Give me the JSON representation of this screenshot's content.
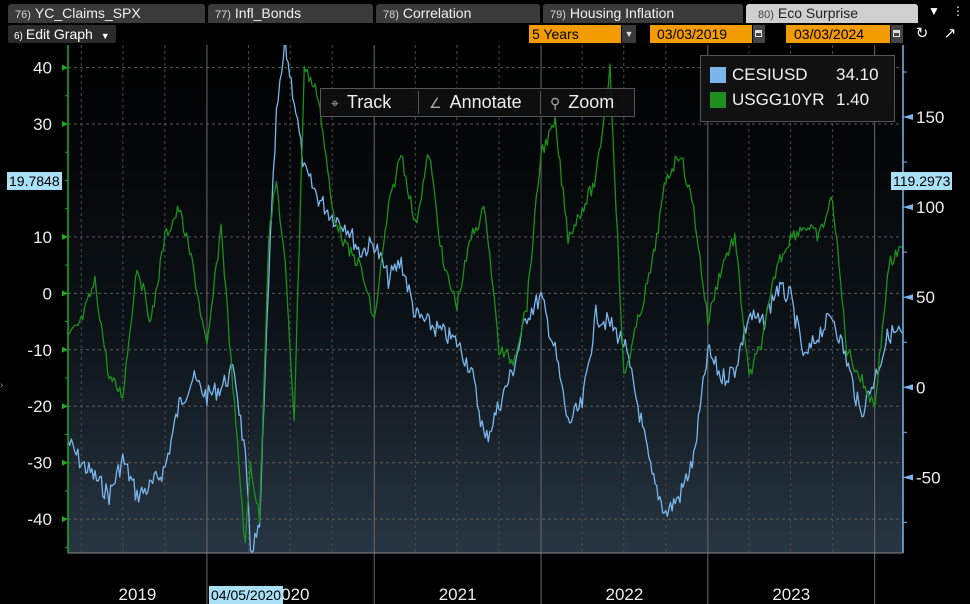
{
  "tabs": [
    {
      "num": "76)",
      "label": "YC_Claims_SPX",
      "active": false
    },
    {
      "num": "77)",
      "label": "Infl_Bonds",
      "active": false
    },
    {
      "num": "78)",
      "label": "Correlation",
      "active": false
    },
    {
      "num": "79)",
      "label": "Housing Inflation",
      "active": false
    },
    {
      "num": "80)",
      "label": "Eco Surprise",
      "active": true
    }
  ],
  "toolbar": {
    "edit_num": "6)",
    "edit_label": "Edit Graph",
    "period": "5 Years",
    "start_date": "03/03/2019",
    "end_date": "03/03/2024"
  },
  "overlay": {
    "track": "Track",
    "annotate": "Annotate",
    "zoom": "Zoom"
  },
  "legend": [
    {
      "name": "CESIUSD",
      "value": "34.10",
      "color": "#7ab6ec"
    },
    {
      "name": "USGG10YR",
      "value": "1.40",
      "color": "#1e8f1e"
    }
  ],
  "crosshair": {
    "left_value": "19.7848",
    "right_value": "119.2973",
    "date": "04/05/2020"
  },
  "chart_data": {
    "type": "line",
    "x_range": [
      "2019-03-03",
      "2024-03-03"
    ],
    "x_tick_labels": [
      "2019",
      "2020",
      "2021",
      "2022",
      "2023"
    ],
    "left_axis": {
      "ticks": [
        40,
        30,
        10,
        0,
        -10,
        -20,
        -30,
        -40
      ],
      "ylim": [
        -46,
        44
      ]
    },
    "right_axis": {
      "ticks": [
        150,
        100,
        50,
        0,
        -50
      ],
      "ylim": [
        -92,
        190
      ]
    },
    "grid": true,
    "legend_position": "top-right",
    "series": [
      {
        "name": "CESIUSD",
        "axis": "right",
        "color": "#7ab6ec",
        "x": [
          "2019-03-03",
          "2019-04-01",
          "2019-05-01",
          "2019-06-01",
          "2019-07-01",
          "2019-08-01",
          "2019-09-01",
          "2019-10-01",
          "2019-11-01",
          "2019-12-01",
          "2020-01-01",
          "2020-02-01",
          "2020-03-01",
          "2020-03-25",
          "2020-04-05",
          "2020-04-25",
          "2020-05-15",
          "2020-06-01",
          "2020-06-20",
          "2020-07-10",
          "2020-08-01",
          "2020-09-01",
          "2020-10-01",
          "2020-11-01",
          "2020-12-01",
          "2021-01-01",
          "2021-02-01",
          "2021-03-01",
          "2021-04-01",
          "2021-05-01",
          "2021-06-01",
          "2021-07-01",
          "2021-08-01",
          "2021-09-01",
          "2021-10-01",
          "2021-11-01",
          "2021-12-01",
          "2022-01-01",
          "2022-02-01",
          "2022-03-01",
          "2022-04-01",
          "2022-05-01",
          "2022-06-01",
          "2022-07-01",
          "2022-08-01",
          "2022-09-01",
          "2022-10-01",
          "2022-11-01",
          "2022-12-01",
          "2023-01-01",
          "2023-02-01",
          "2023-03-01",
          "2023-04-01",
          "2023-05-01",
          "2023-06-01",
          "2023-07-01",
          "2023-08-01",
          "2023-09-01",
          "2023-10-01",
          "2023-11-01",
          "2023-12-01",
          "2024-01-01",
          "2024-02-01",
          "2024-03-01"
        ],
        "y": [
          -30,
          -42,
          -50,
          -60,
          -40,
          -60,
          -55,
          -45,
          -10,
          5,
          -5,
          0,
          10,
          -40,
          -90,
          -80,
          60,
          150,
          190,
          160,
          120,
          105,
          95,
          90,
          75,
          80,
          60,
          70,
          40,
          35,
          30,
          25,
          10,
          -30,
          -10,
          10,
          40,
          50,
          20,
          -20,
          -10,
          40,
          35,
          25,
          -10,
          -50,
          -70,
          -60,
          -40,
          20,
          5,
          10,
          40,
          35,
          55,
          50,
          15,
          30,
          40,
          15,
          -15,
          5,
          30,
          30
        ]
      },
      {
        "name": "USGG10YR",
        "axis": "left",
        "color": "#1e8f1e",
        "x": [
          "2019-03-03",
          "2019-04-01",
          "2019-05-01",
          "2019-06-01",
          "2019-07-01",
          "2019-08-01",
          "2019-09-01",
          "2019-10-01",
          "2019-11-01",
          "2019-12-01",
          "2020-01-01",
          "2020-02-01",
          "2020-03-01",
          "2020-03-25",
          "2020-04-05",
          "2020-04-25",
          "2020-05-15",
          "2020-06-01",
          "2020-06-20",
          "2020-07-10",
          "2020-08-01",
          "2020-09-01",
          "2020-10-01",
          "2020-11-01",
          "2020-12-01",
          "2021-01-01",
          "2021-02-01",
          "2021-03-01",
          "2021-04-01",
          "2021-05-01",
          "2021-06-01",
          "2021-07-01",
          "2021-08-01",
          "2021-09-01",
          "2021-10-01",
          "2021-11-01",
          "2021-12-01",
          "2022-01-01",
          "2022-02-01",
          "2022-03-01",
          "2022-04-01",
          "2022-05-01",
          "2022-06-01",
          "2022-07-01",
          "2022-08-01",
          "2022-09-01",
          "2022-10-01",
          "2022-11-01",
          "2022-12-01",
          "2023-01-01",
          "2023-02-01",
          "2023-03-01",
          "2023-04-01",
          "2023-05-01",
          "2023-06-01",
          "2023-07-01",
          "2023-08-01",
          "2023-09-01",
          "2023-10-01",
          "2023-11-01",
          "2023-12-01",
          "2024-01-01",
          "2024-02-01",
          "2024-03-01"
        ],
        "y": [
          -8,
          -5,
          2,
          -15,
          -18,
          5,
          -5,
          10,
          15,
          5,
          -10,
          12,
          -20,
          -45,
          -30,
          -40,
          10,
          20,
          5,
          -22,
          40,
          35,
          15,
          8,
          5,
          -5,
          15,
          25,
          12,
          25,
          5,
          -2,
          10,
          15,
          -10,
          -12,
          -2,
          25,
          30,
          10,
          15,
          20,
          40,
          -15,
          -5,
          5,
          20,
          25,
          15,
          -5,
          5,
          10,
          -15,
          -8,
          5,
          10,
          12,
          10,
          17,
          -10,
          -15,
          -20,
          5,
          8
        ]
      }
    ]
  }
}
